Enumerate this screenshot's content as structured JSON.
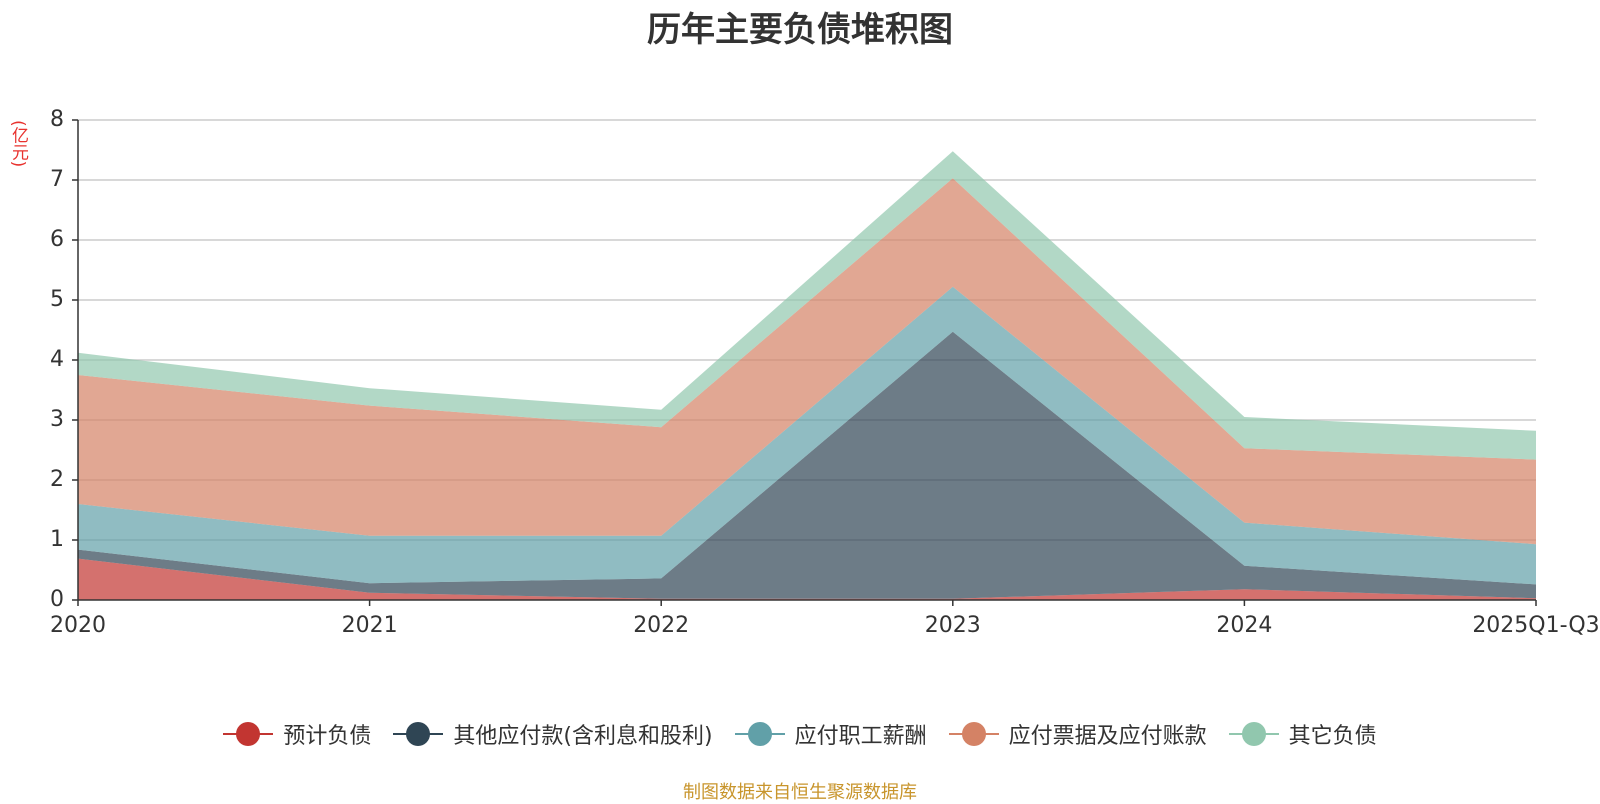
{
  "chart_data": {
    "type": "area",
    "stacked": true,
    "title": "历年主要负债堆积图",
    "ylabel": "(亿元)",
    "xlabel": "",
    "categories": [
      "2020",
      "2021",
      "2022",
      "2023",
      "2024",
      "2025Q1-Q3"
    ],
    "ylim": [
      0,
      8
    ],
    "yticks": [
      0,
      1,
      2,
      3,
      4,
      5,
      6,
      7,
      8
    ],
    "grid": true,
    "legend_position": "bottom",
    "series": [
      {
        "name": "预计负债",
        "color": "#c23531",
        "values": [
          0.69,
          0.12,
          0.02,
          0.02,
          0.18,
          0.03
        ]
      },
      {
        "name": "其他应付款(含利息和股利)",
        "color": "#2f4554",
        "values": [
          0.15,
          0.16,
          0.34,
          4.45,
          0.39,
          0.23
        ]
      },
      {
        "name": "应付职工薪酬",
        "color": "#61a0a8",
        "values": [
          0.76,
          0.79,
          0.71,
          0.75,
          0.72,
          0.67
        ]
      },
      {
        "name": "应付票据及应付账款",
        "color": "#d48265",
        "values": [
          2.15,
          2.17,
          1.81,
          1.81,
          1.24,
          1.41
        ]
      },
      {
        "name": "其它负债",
        "color": "#91c7ae",
        "values": [
          0.37,
          0.29,
          0.29,
          0.45,
          0.52,
          0.48
        ]
      }
    ]
  },
  "footer": {
    "source": "制图数据来自恒生聚源数据库"
  }
}
